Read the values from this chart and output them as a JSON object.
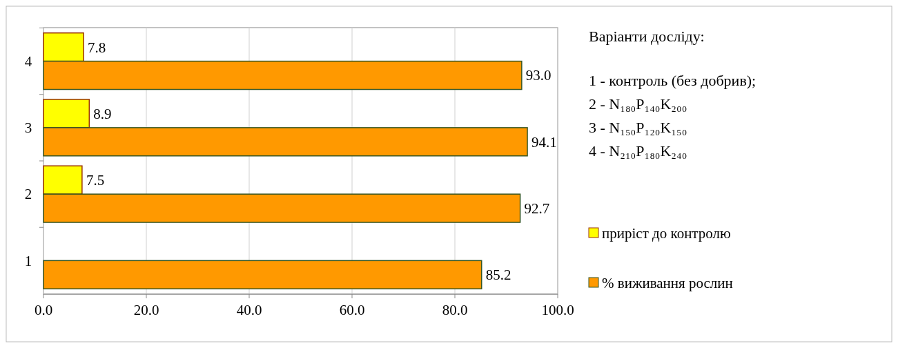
{
  "chart_data": {
    "type": "bar",
    "orientation": "horizontal",
    "categories": [
      "4",
      "3",
      "2",
      "1"
    ],
    "series": [
      {
        "name": "приріст до контролю",
        "color": "#ffff00",
        "values": [
          7.8,
          8.9,
          7.5,
          null
        ],
        "value_labels": [
          "7.8",
          "8.9",
          "7.5",
          null
        ]
      },
      {
        "name": "% виживання рослин",
        "color": "#ff9900",
        "values": [
          93.0,
          94.1,
          92.7,
          85.2
        ],
        "value_labels": [
          "93.0",
          "94.1",
          "92.7",
          "85.2"
        ]
      }
    ],
    "xlim": [
      0,
      100
    ],
    "xticks": [
      {
        "value": 0,
        "label": "0.0"
      },
      {
        "value": 20,
        "label": "20.0"
      },
      {
        "value": 40,
        "label": "40.0"
      },
      {
        "value": 60,
        "label": "60.0"
      },
      {
        "value": 80,
        "label": "80.0"
      },
      {
        "value": 100,
        "label": "100.0"
      }
    ],
    "grid": "x",
    "legend": "right",
    "annotations": [
      "Варіанти досліду:",
      "1 - контроль (без добрив);",
      "2 - N₁₈₀P₁₄₀K₂₀₀",
      "3 - N₁₅₀P₁₂₀K₁₅₀",
      "4 - N₂₁₀P₁₈₀K₂₄₀"
    ]
  }
}
